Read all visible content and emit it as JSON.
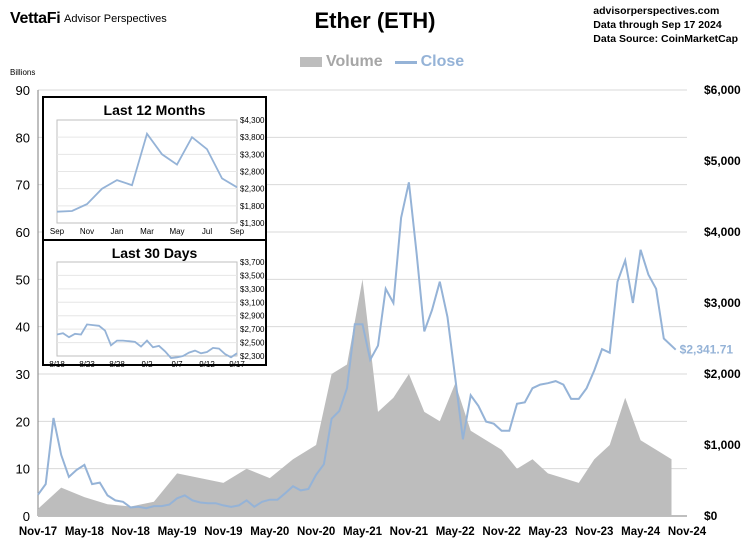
{
  "header": {
    "logo": "VettaFi",
    "logo_sub": "Advisor Perspectives",
    "title": "Ether (ETH)",
    "source_lines": [
      "advisorperspectives.com",
      "Data through Sep 17 2024",
      "Data Source: CoinMarketCap"
    ]
  },
  "colors": {
    "volume": "#bdbdbd",
    "close": "#95b3d7",
    "grid": "#d9d9d9"
  },
  "chart_data": [
    {
      "type": "area",
      "title": "Ether (ETH)",
      "left_axis_label": "Billions",
      "x_ticks": [
        "Nov-17",
        "May-18",
        "Nov-18",
        "May-19",
        "Nov-19",
        "May-20",
        "Nov-20",
        "May-21",
        "Nov-21",
        "May-22",
        "Nov-22",
        "May-23",
        "Nov-23",
        "May-24",
        "Nov-24"
      ],
      "y_left_ticks": [
        "0",
        "10",
        "20",
        "30",
        "40",
        "50",
        "60",
        "70",
        "80",
        "90"
      ],
      "y_left_range": [
        0,
        90
      ],
      "y_right_ticks": [
        "$0",
        "$1,000",
        "$2,000",
        "$3,000",
        "$4,000",
        "$5,000",
        "$6,000"
      ],
      "y_right_range": [
        0,
        6000
      ],
      "grid": true,
      "last_label": "$2,341.71",
      "series": [
        {
          "name": "Volume",
          "axis": "left",
          "unit": "billions",
          "x": [
            "2017-11",
            "2018-02",
            "2018-05",
            "2018-08",
            "2018-11",
            "2019-02",
            "2019-05",
            "2019-08",
            "2019-11",
            "2020-02",
            "2020-05",
            "2020-08",
            "2020-11",
            "2021-01",
            "2021-03",
            "2021-05",
            "2021-07",
            "2021-09",
            "2021-11",
            "2022-01",
            "2022-03",
            "2022-05",
            "2022-07",
            "2022-09",
            "2022-11",
            "2023-01",
            "2023-03",
            "2023-05",
            "2023-07",
            "2023-09",
            "2023-11",
            "2024-01",
            "2024-03",
            "2024-05",
            "2024-07",
            "2024-09"
          ],
          "values": [
            1.5,
            6,
            4,
            2.5,
            2,
            3,
            9,
            8,
            7,
            10,
            8,
            12,
            15,
            30,
            32,
            50,
            22,
            25,
            30,
            22,
            20,
            28,
            18,
            16,
            14,
            10,
            12,
            9,
            8,
            7,
            12,
            15,
            25,
            16,
            14,
            12
          ]
        },
        {
          "name": "Close",
          "axis": "right",
          "unit": "USD",
          "x": [
            "2017-11",
            "2017-12",
            "2018-01",
            "2018-02",
            "2018-03",
            "2018-04",
            "2018-05",
            "2018-06",
            "2018-07",
            "2018-08",
            "2018-09",
            "2018-10",
            "2018-11",
            "2018-12",
            "2019-01",
            "2019-02",
            "2019-03",
            "2019-04",
            "2019-05",
            "2019-06",
            "2019-07",
            "2019-08",
            "2019-09",
            "2019-10",
            "2019-11",
            "2019-12",
            "2020-01",
            "2020-02",
            "2020-03",
            "2020-04",
            "2020-05",
            "2020-06",
            "2020-07",
            "2020-08",
            "2020-09",
            "2020-10",
            "2020-11",
            "2020-12",
            "2021-01",
            "2021-02",
            "2021-03",
            "2021-04",
            "2021-05",
            "2021-06",
            "2021-07",
            "2021-08",
            "2021-09",
            "2021-10",
            "2021-11",
            "2021-12",
            "2022-01",
            "2022-02",
            "2022-03",
            "2022-04",
            "2022-05",
            "2022-06",
            "2022-07",
            "2022-08",
            "2022-09",
            "2022-10",
            "2022-11",
            "2022-12",
            "2023-01",
            "2023-02",
            "2023-03",
            "2023-04",
            "2023-05",
            "2023-06",
            "2023-07",
            "2023-08",
            "2023-09",
            "2023-10",
            "2023-11",
            "2023-12",
            "2024-01",
            "2024-02",
            "2024-03",
            "2024-04",
            "2024-05",
            "2024-06",
            "2024-07",
            "2024-08",
            "2024-09-17"
          ],
          "values": [
            300,
            450,
            1380,
            860,
            550,
            650,
            720,
            450,
            470,
            290,
            220,
            200,
            120,
            130,
            110,
            140,
            140,
            160,
            250,
            290,
            220,
            190,
            180,
            180,
            150,
            130,
            150,
            220,
            130,
            200,
            230,
            230,
            320,
            420,
            360,
            380,
            580,
            730,
            1370,
            1480,
            1800,
            2700,
            2700,
            2200,
            2400,
            3200,
            3000,
            4200,
            4700,
            3700,
            2600,
            2900,
            3300,
            2800,
            1950,
            1080,
            1700,
            1550,
            1330,
            1300,
            1200,
            1200,
            1580,
            1600,
            1800,
            1850,
            1870,
            1900,
            1850,
            1650,
            1650,
            1800,
            2050,
            2350,
            2300,
            3300,
            3600,
            3000,
            3750,
            3400,
            3200,
            2500,
            2341.71
          ]
        }
      ]
    },
    {
      "type": "line",
      "title": "Last 12 Months",
      "x_ticks": [
        "Sep",
        "Nov",
        "Jan",
        "Mar",
        "May",
        "Jul",
        "Sep"
      ],
      "y_ticks": [
        "$1,300",
        "$1,800",
        "$2,300",
        "$2,800",
        "$3,300",
        "$3,800",
        "$4,300"
      ],
      "y_range": [
        1300,
        4300
      ],
      "series": [
        {
          "name": "Close",
          "x": [
            "Sep-23",
            "Oct-23",
            "Nov-23",
            "Dec-23",
            "Jan-24",
            "Feb-24",
            "Mar-24",
            "Apr-24",
            "May-24",
            "Jun-24",
            "Jul-24",
            "Aug-24",
            "Sep-24"
          ],
          "values": [
            1630,
            1650,
            1850,
            2300,
            2550,
            2400,
            3900,
            3300,
            3000,
            3800,
            3450,
            2600,
            2340
          ]
        }
      ]
    },
    {
      "type": "line",
      "title": "Last 30 Days",
      "x_ticks": [
        "8/18",
        "8/23",
        "8/28",
        "9/2",
        "9/7",
        "9/12",
        "9/17"
      ],
      "y_ticks": [
        "$2,300",
        "$2,500",
        "$2,700",
        "$2,900",
        "$3,100",
        "$3,300",
        "$3,500",
        "$3,700"
      ],
      "y_range": [
        2300,
        3700
      ],
      "series": [
        {
          "name": "Close",
          "x": [
            "8/18",
            "8/19",
            "8/20",
            "8/21",
            "8/22",
            "8/23",
            "8/24",
            "8/25",
            "8/26",
            "8/27",
            "8/28",
            "8/29",
            "8/30",
            "8/31",
            "9/1",
            "9/2",
            "9/3",
            "9/4",
            "9/5",
            "9/6",
            "9/7",
            "9/8",
            "9/9",
            "9/10",
            "9/11",
            "9/12",
            "9/13",
            "9/14",
            "9/15",
            "9/16",
            "9/17"
          ],
          "values": [
            2620,
            2640,
            2580,
            2630,
            2620,
            2770,
            2760,
            2750,
            2680,
            2460,
            2530,
            2530,
            2520,
            2510,
            2440,
            2530,
            2430,
            2450,
            2370,
            2270,
            2280,
            2300,
            2350,
            2380,
            2340,
            2360,
            2420,
            2410,
            2330,
            2280,
            2340
          ]
        }
      ]
    }
  ]
}
